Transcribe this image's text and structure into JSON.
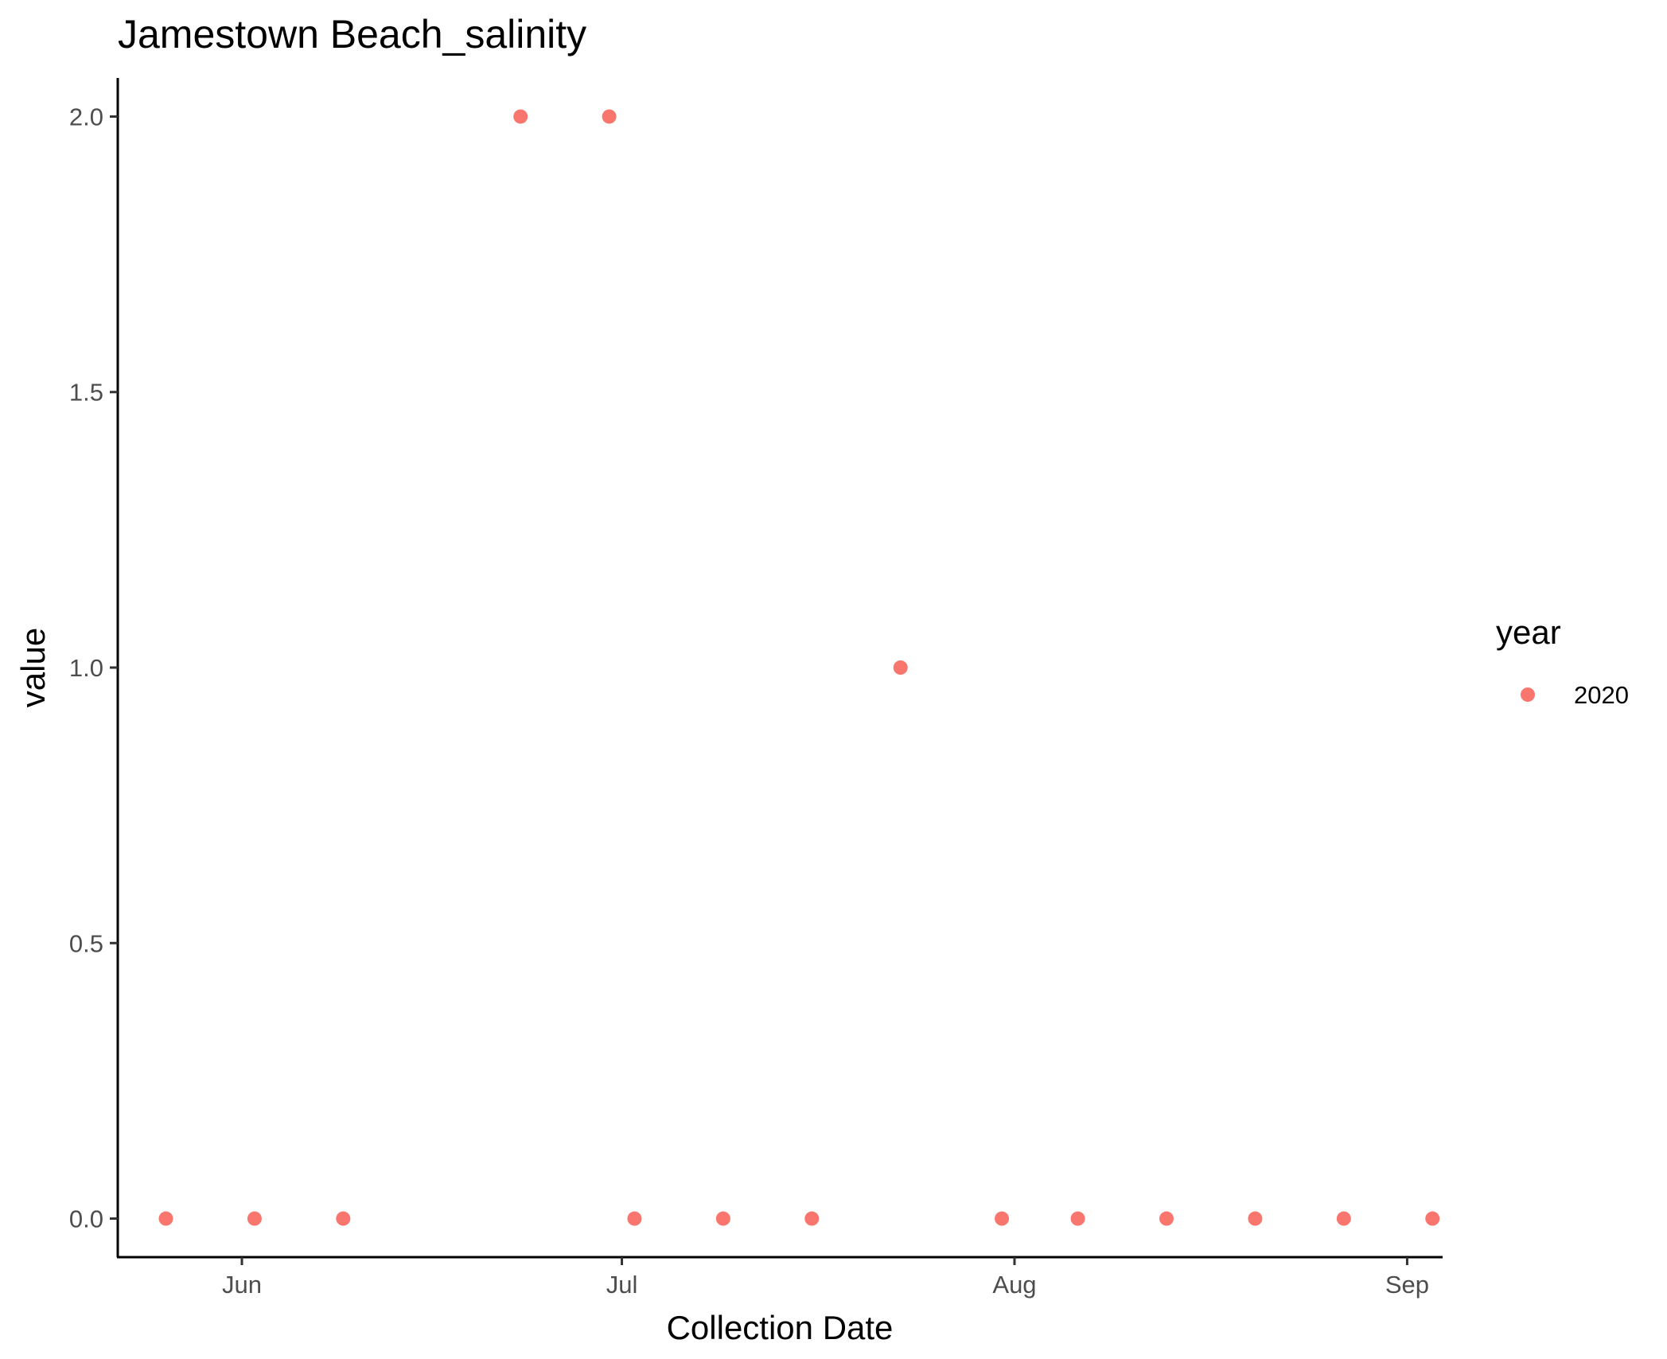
{
  "chart_data": {
    "type": "scatter",
    "title": "Jamestown Beach_salinity",
    "xlabel": "Collection Date",
    "ylabel": "value",
    "x_axis_type": "date",
    "xlim": [
      "2020-05-19",
      "2020-09-07"
    ],
    "ylim": [
      -0.1,
      2.1
    ],
    "x_ticks": [
      {
        "date": "2020-06-01",
        "label": "Jun"
      },
      {
        "date": "2020-07-01",
        "label": "Jul"
      },
      {
        "date": "2020-08-01",
        "label": "Aug"
      },
      {
        "date": "2020-09-01",
        "label": "Sep"
      }
    ],
    "y_ticks": [
      {
        "value": 0.0,
        "label": "0.0"
      },
      {
        "value": 0.5,
        "label": "0.5"
      },
      {
        "value": 1.0,
        "label": "1.0"
      },
      {
        "value": 1.5,
        "label": "1.5"
      },
      {
        "value": 2.0,
        "label": "2.0"
      }
    ],
    "grid": false,
    "legend": {
      "title": "year",
      "placement": "right"
    },
    "series": [
      {
        "name": "2020",
        "color": "#F8766D",
        "points": [
          {
            "x": "2020-05-26",
            "y": 0
          },
          {
            "x": "2020-06-02",
            "y": 0
          },
          {
            "x": "2020-06-09",
            "y": 0
          },
          {
            "x": "2020-06-23",
            "y": 2
          },
          {
            "x": "2020-06-30",
            "y": 2
          },
          {
            "x": "2020-07-02",
            "y": 0
          },
          {
            "x": "2020-07-09",
            "y": 0
          },
          {
            "x": "2020-07-16",
            "y": 0
          },
          {
            "x": "2020-07-23",
            "y": 1
          },
          {
            "x": "2020-07-31",
            "y": 0
          },
          {
            "x": "2020-08-06",
            "y": 0
          },
          {
            "x": "2020-08-13",
            "y": 0
          },
          {
            "x": "2020-08-20",
            "y": 0
          },
          {
            "x": "2020-08-27",
            "y": 0
          },
          {
            "x": "2020-09-03",
            "y": 0
          }
        ]
      }
    ]
  }
}
